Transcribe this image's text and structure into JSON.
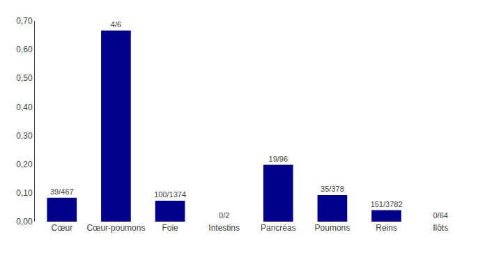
{
  "chart_data": {
    "type": "bar",
    "categories": [
      "Cœur",
      "Cœur-poumons",
      "Foie",
      "Intestins",
      "Pancréas",
      "Poumons",
      "Reins",
      "Ilôts"
    ],
    "values": [
      0.08351,
      0.66667,
      0.07277,
      0.0,
      0.19792,
      0.09259,
      0.03993,
      0.0
    ],
    "value_labels": [
      "39/467",
      "4/6",
      "100/1374",
      "0/2",
      "19/96",
      "35/378",
      "151/3782",
      "0/64"
    ],
    "data_labels": true,
    "color": "#00008B",
    "ylim": [
      0,
      0.7
    ],
    "yticks": [
      {
        "value": 0.0,
        "label": "0,00"
      },
      {
        "value": 0.1,
        "label": "0,10"
      },
      {
        "value": 0.2,
        "label": "0,20"
      },
      {
        "value": 0.3,
        "label": "0,30"
      },
      {
        "value": 0.4,
        "label": "0,40"
      },
      {
        "value": 0.5,
        "label": "0,50"
      },
      {
        "value": 0.6,
        "label": "0,60"
      },
      {
        "value": 0.7,
        "label": "0,70"
      }
    ],
    "grid": false
  }
}
